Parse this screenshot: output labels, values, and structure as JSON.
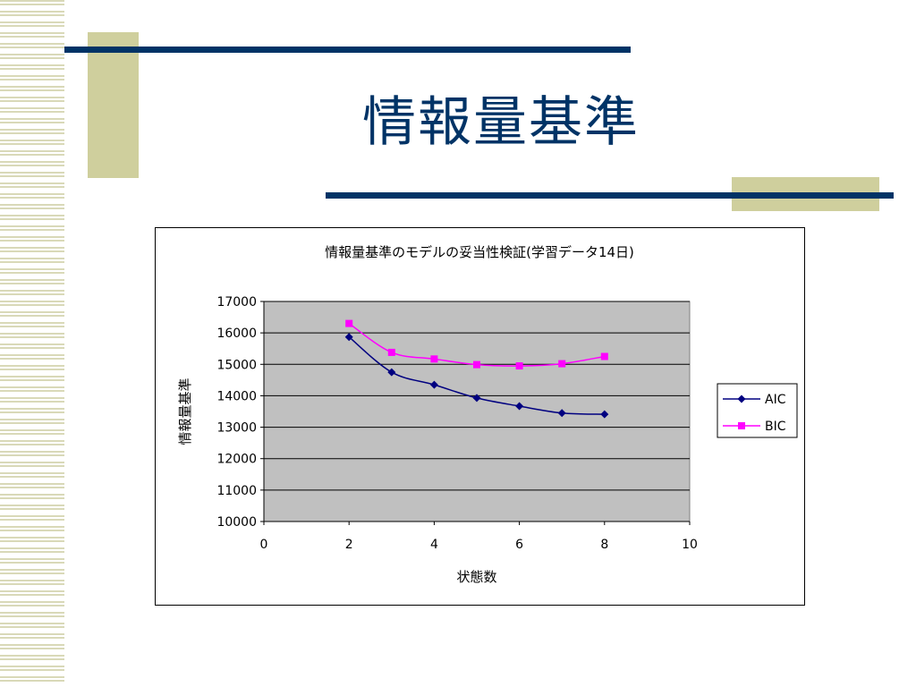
{
  "slide": {
    "title": "情報量基準",
    "colors": {
      "title": "#003366",
      "rule": "#003366",
      "accent_block": "#cfcf9d",
      "stripes": "#d9d9b8"
    }
  },
  "chart_data": {
    "type": "line",
    "title": "情報量基準のモデルの妥当性検証(学習データ14日)",
    "xlabel": "状態数",
    "ylabel": "情報量基準",
    "xlim": [
      0,
      10
    ],
    "ylim": [
      10000,
      17000
    ],
    "xticks": [
      0,
      2,
      4,
      6,
      8,
      10
    ],
    "yticks": [
      10000,
      11000,
      12000,
      13000,
      14000,
      15000,
      16000,
      17000
    ],
    "grid": "horizontal",
    "plot_background": "#c0c0c0",
    "legend": "right",
    "series": [
      {
        "name": "AIC",
        "color": "#000080",
        "marker": "diamond",
        "x": [
          2,
          3,
          4,
          5,
          6,
          7,
          8
        ],
        "values": [
          15870,
          14750,
          14350,
          13930,
          13670,
          13450,
          13410
        ]
      },
      {
        "name": "BIC",
        "color": "#ff00ff",
        "marker": "square",
        "x": [
          2,
          3,
          4,
          5,
          6,
          7,
          8
        ],
        "values": [
          16300,
          15380,
          15170,
          14990,
          14950,
          15020,
          15250
        ]
      }
    ]
  }
}
